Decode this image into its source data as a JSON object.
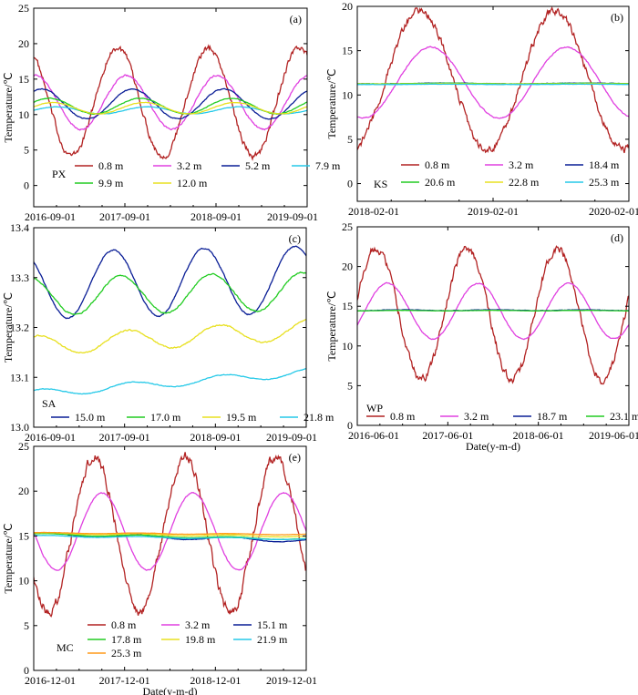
{
  "chart_data": [
    {
      "panel": "(a)",
      "site": "PX",
      "type": "line",
      "ylabel": "Temperature/℃",
      "xlabel": "",
      "ylim": [
        -3,
        25
      ],
      "yticks": [
        0,
        5,
        10,
        15,
        20,
        25
      ],
      "xlim": [
        0,
        36
      ],
      "xtick_labels": [
        "2016-09-01",
        "2017-09-01",
        "2018-09-01",
        "2019-09-01"
      ],
      "legend_position": "bottom-left",
      "series": [
        {
          "name": "0.8 m",
          "color": "#b22222",
          "mean": 11.8,
          "amp": 7.6,
          "phase": 11.0,
          "noise": 0.35
        },
        {
          "name": "3.2 m",
          "color": "#e040e0",
          "mean": 11.7,
          "amp": 3.8,
          "phase": 12.2,
          "noise": 0.1
        },
        {
          "name": "5.2 m",
          "color": "#0a1e96",
          "mean": 11.5,
          "amp": 2.1,
          "phase": 13.0,
          "noise": 0.05
        },
        {
          "name": "7.9 m",
          "color": "#26c9e8",
          "mean": 10.6,
          "amp": 0.5,
          "phase": 15.0,
          "noise": 0.02
        },
        {
          "name": "9.9 m",
          "color": "#22cc22",
          "mean": 11.2,
          "amp": 1.1,
          "phase": 14.0,
          "noise": 0.03
        },
        {
          "name": "12.0 m",
          "color": "#e8e020",
          "mean": 10.9,
          "amp": 0.8,
          "phase": 14.5,
          "noise": 0.02
        }
      ]
    },
    {
      "panel": "(b)",
      "site": "KS",
      "type": "line",
      "ylabel": "Temperature/℃",
      "xlabel": "",
      "ylim": [
        -2,
        20
      ],
      "yticks": [
        0,
        5,
        10,
        15,
        20
      ],
      "xlim": [
        0,
        24
      ],
      "xtick_labels": [
        "2018-02-01",
        "2019-02-01",
        "2020-02-01"
      ],
      "legend_position": "bottom-left",
      "series": [
        {
          "name": "0.8 m",
          "color": "#b22222",
          "mean": 11.7,
          "amp": 7.8,
          "phase": 5.5,
          "noise": 0.35
        },
        {
          "name": "3.2 m",
          "color": "#e040e0",
          "mean": 11.4,
          "amp": 4.0,
          "phase": 6.5,
          "noise": 0.05
        },
        {
          "name": "18.4 m",
          "color": "#0a1e96",
          "mean": 11.3,
          "amp": 0.05,
          "phase": 8.0,
          "noise": 0.02
        },
        {
          "name": "20.6 m",
          "color": "#22cc22",
          "mean": 11.3,
          "amp": 0.03,
          "phase": 8.0,
          "noise": 0.01
        },
        {
          "name": "22.8 m",
          "color": "#e8e020",
          "mean": 11.25,
          "amp": 0.02,
          "phase": 8.0,
          "noise": 0.01
        },
        {
          "name": "25.3 m",
          "color": "#26c9e8",
          "mean": 11.2,
          "amp": 0.02,
          "phase": 8.0,
          "noise": 0.01
        }
      ]
    },
    {
      "panel": "(c)",
      "site": "SA",
      "type": "line",
      "ylabel": "Temperature/℃",
      "xlabel": "",
      "ylim": [
        13.0,
        13.4
      ],
      "yticks": [
        13.0,
        13.1,
        13.2,
        13.3,
        13.4
      ],
      "ytick_decimals": 1,
      "xlim": [
        0,
        36
      ],
      "xtick_labels": [
        "2016-09-01",
        "2017-09-01",
        "2018-09-01",
        "2019-09-01"
      ],
      "legend_position": "bottom-left",
      "series": [
        {
          "name": "15.0 m",
          "color": "#0a1e96",
          "mean": 13.285,
          "amp": 0.067,
          "phase": 10.5,
          "trend": 0.0003,
          "noise": 0.001
        },
        {
          "name": "17.0 m",
          "color": "#22cc22",
          "mean": 13.262,
          "amp": 0.038,
          "phase": 11.5,
          "trend": 0.0003,
          "noise": 0.001
        },
        {
          "name": "19.5 m",
          "color": "#e8e020",
          "mean": 13.163,
          "amp": 0.02,
          "phase": 12.5,
          "trend": 0.0009,
          "noise": 0.001
        },
        {
          "name": "21.8 m",
          "color": "#26c9e8",
          "mean": 13.067,
          "amp": 0.008,
          "phase": 13.0,
          "trend": 0.0012,
          "noise": 0.0005
        }
      ]
    },
    {
      "panel": "(d)",
      "site": "WP",
      "type": "line",
      "ylabel": "Temperature/℃",
      "xlabel": "Date(y-m-d)",
      "ylim": [
        0,
        25
      ],
      "yticks": [
        0,
        5,
        10,
        15,
        20,
        25
      ],
      "xlim": [
        0,
        36
      ],
      "xtick_labels": [
        "2016-06-01",
        "2017-06-01",
        "2018-06-01",
        "2019-06-01"
      ],
      "legend_position": "bottom-left",
      "series": [
        {
          "name": "0.8 m",
          "color": "#b22222",
          "mean": 14.0,
          "amp": 8.3,
          "phase": 2.5,
          "noise": 0.4
        },
        {
          "name": "3.2 m",
          "color": "#e040e0",
          "mean": 14.4,
          "amp": 3.5,
          "phase": 4.0,
          "noise": 0.05
        },
        {
          "name": "18.7 m",
          "color": "#0a1e96",
          "mean": 14.5,
          "amp": 0.05,
          "phase": 6.0,
          "noise": 0.02
        },
        {
          "name": "23.1 m",
          "color": "#22cc22",
          "mean": 14.45,
          "amp": 0.03,
          "phase": 6.0,
          "noise": 0.01
        }
      ]
    },
    {
      "panel": "(e)",
      "site": "MC",
      "type": "line",
      "ylabel": "Temperature/℃",
      "xlabel": "Date(y-m-d)",
      "ylim": [
        0,
        25
      ],
      "yticks": [
        0,
        5,
        10,
        15,
        20,
        25
      ],
      "xlim": [
        0,
        36
      ],
      "xtick_labels": [
        "2016-12-01",
        "2017-12-01",
        "2018-12-01",
        "2019-12-01"
      ],
      "legend_position": "bottom-left",
      "series": [
        {
          "name": "0.8 m",
          "color": "#b22222",
          "mean": 15.2,
          "amp": 8.7,
          "phase": 8.0,
          "noise": 0.45
        },
        {
          "name": "3.2 m",
          "color": "#e040e0",
          "mean": 15.5,
          "amp": 4.3,
          "phase": 9.0,
          "noise": 0.05
        },
        {
          "name": "15.1 m",
          "color": "#0a1e96",
          "mean": 15.2,
          "amp": 0.2,
          "phase": 2.0,
          "trend": -0.02,
          "noise": 0.02
        },
        {
          "name": "17.8 m",
          "color": "#22cc22",
          "mean": 15.2,
          "amp": 0.1,
          "phase": 2.0,
          "trend": -0.015,
          "noise": 0.01
        },
        {
          "name": "19.8 m",
          "color": "#e8e020",
          "mean": 15.3,
          "amp": 0.08,
          "phase": 2.0,
          "trend": -0.01,
          "noise": 0.01
        },
        {
          "name": "21.9 m",
          "color": "#26c9e8",
          "mean": 15.0,
          "amp": 0.08,
          "phase": 2.0,
          "trend": -0.01,
          "noise": 0.01
        },
        {
          "name": "25.3 m",
          "color": "#ff9a1a",
          "mean": 15.35,
          "amp": 0.05,
          "phase": 2.0,
          "trend": -0.005,
          "noise": 0.01
        }
      ]
    }
  ]
}
